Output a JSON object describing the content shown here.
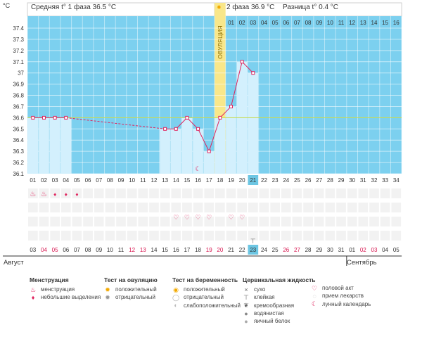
{
  "chart_data": {
    "type": "bar",
    "ylabel": "°C",
    "y_ticks": [
      "36.1",
      "36.2",
      "36.3",
      "36.4",
      "36.5",
      "36.6",
      "36.7",
      "36.8",
      "36.9",
      "37",
      "37.1",
      "37.2",
      "37.3",
      "37.4"
    ],
    "ylim": [
      36.1,
      37.4
    ],
    "cycle_days": [
      "01",
      "02",
      "03",
      "04",
      "05",
      "06",
      "07",
      "08",
      "09",
      "10",
      "11",
      "12",
      "13",
      "14",
      "15",
      "16",
      "17",
      "18",
      "19",
      "20",
      "21",
      "22",
      "23",
      "24",
      "25",
      "26",
      "27",
      "28",
      "29",
      "30",
      "31",
      "32",
      "33",
      "34"
    ],
    "temperatures": [
      36.6,
      36.6,
      36.6,
      36.6,
      null,
      null,
      null,
      null,
      null,
      null,
      null,
      null,
      36.5,
      36.5,
      36.6,
      36.5,
      36.3,
      36.6,
      36.7,
      37.1,
      37.0,
      null,
      null,
      null,
      null,
      null,
      null,
      null,
      null,
      null,
      null,
      null,
      null,
      null
    ],
    "coverline": 36.6,
    "ovulation_day": "18",
    "ovulation_label": "ОВУЛЯЦИЯ",
    "phase2_header": [
      "01",
      "02",
      "03",
      "04",
      "05",
      "06",
      "07",
      "08",
      "09",
      "10",
      "11",
      "12",
      "13",
      "14",
      "15",
      "16"
    ],
    "current_day": "21",
    "calendar_dates": [
      "03",
      "04",
      "05",
      "06",
      "07",
      "08",
      "09",
      "10",
      "11",
      "12",
      "13",
      "14",
      "15",
      "16",
      "17",
      "18",
      "19",
      "20",
      "21",
      "22",
      "23",
      "24",
      "25",
      "26",
      "27",
      "28",
      "29",
      "30",
      "31",
      "01",
      "02",
      "03",
      "04",
      "05"
    ],
    "weekend_dates_idx": [
      1,
      2,
      9,
      10,
      16,
      17,
      23,
      24,
      30,
      31
    ],
    "current_date": "23",
    "months": [
      "Август",
      "Сентябрь"
    ],
    "menstruation_heavy_idx": [
      0,
      1
    ],
    "menstruation_light_idx": [
      2,
      3,
      4
    ],
    "intercourse_idx": [
      13,
      14,
      15,
      16,
      18,
      19
    ],
    "moon_idx": 15,
    "mucus_sticky_idx": 20
  },
  "summary": {
    "phase1": "Средняя t° 1 фаза 36.5 °C",
    "phase2": "2 фаза 36.9 °C",
    "diff": "Разница t° 0.4 °C"
  },
  "legend": {
    "menstruation": {
      "title": "Менструация",
      "items": [
        "менструация",
        "небольшие выделения"
      ]
    },
    "ovulation_test": {
      "title": "Тест на овуляцию",
      "items": [
        "положительный",
        "отрицательный"
      ]
    },
    "pregnancy_test": {
      "title": "Тест на беременность",
      "items": [
        "положительный",
        "отрицательный",
        "слабоположительный"
      ]
    },
    "cervical": {
      "title": "Цервикальная жидкость",
      "items": [
        "сухо",
        "клейкая",
        "кремообразная",
        "водянистая",
        "яичный белок"
      ]
    },
    "other": {
      "items": [
        "половой акт",
        "прием лекарств",
        "лунный календарь"
      ]
    }
  },
  "colors": {
    "sky": "#7cd0ef",
    "bar": "#d3f0fd",
    "line": "#e0245e",
    "ovulation": "#f9e78a",
    "phase_line": "#c7d83a",
    "current": "#6cc6e3",
    "weekend": "#d7144e",
    "grid_row": "#f2f2f2"
  }
}
